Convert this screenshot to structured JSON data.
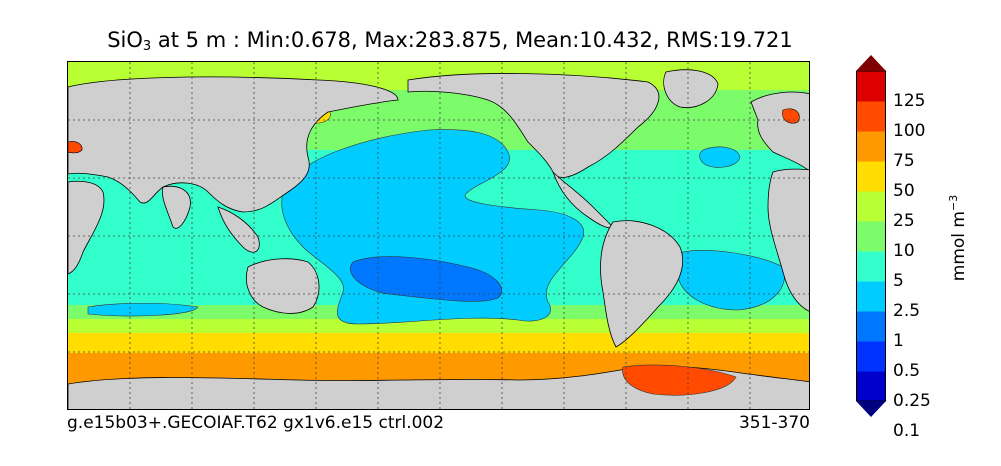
{
  "title": {
    "variable": "SiO",
    "subscript": "3",
    "rest": " at 5 m : Min:0.678, Max:283.875, Mean:10.432, RMS:19.721"
  },
  "caption": {
    "case": "g.e15b03+.GECOIAF.T62 gx1v6.e15 ctrl.002",
    "years": "351-370"
  },
  "colorbar": {
    "units_base": "mmol m",
    "units_exp": "−3",
    "levels": [
      "125",
      "100",
      "75",
      "50",
      "25",
      "10",
      "5",
      "2.5",
      "1",
      "0.5",
      "0.25",
      "0.1"
    ],
    "colors": [
      "#000080",
      "#0000cd",
      "#0033ff",
      "#0077ff",
      "#00ccff",
      "#33ffcc",
      "#7cfc6a",
      "#b8ff33",
      "#ffdd00",
      "#ff9900",
      "#ff4a00",
      "#dd0000",
      "#7f0000"
    ]
  },
  "colors": {
    "land": "#cfcfcf"
  }
}
